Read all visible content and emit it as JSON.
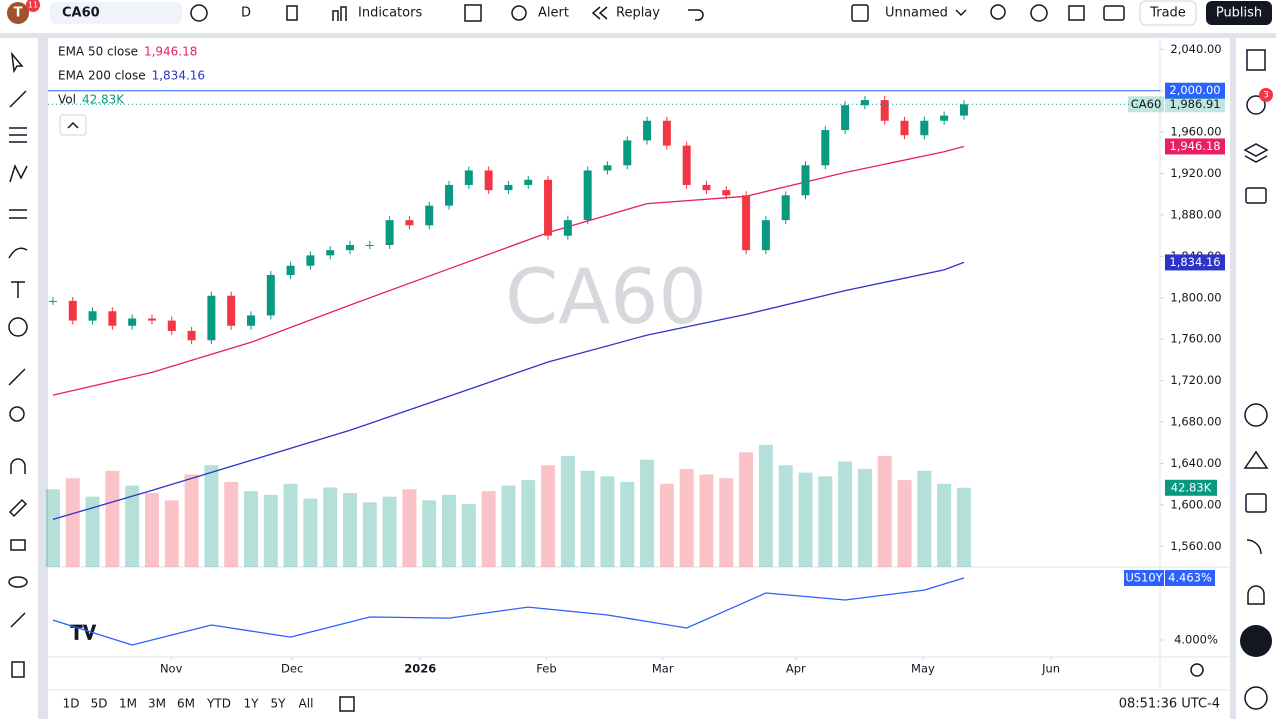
{
  "toolbar": {
    "avatar": "T",
    "avatar_badge": "11",
    "symbol": "CA60",
    "interval": "D",
    "indicators": "Indicators",
    "alert": "Alert",
    "replay": "Replay",
    "layout_name": "Unnamed",
    "trade": "Trade",
    "publish": "Publish"
  },
  "side_badge": "3",
  "bottom_bar": {
    "ranges": [
      "1D",
      "5D",
      "1M",
      "3M",
      "6M",
      "YTD",
      "1Y",
      "5Y",
      "All"
    ],
    "clock": "08:51:36 UTC-4"
  },
  "chart_data": {
    "type": "candlestick",
    "watermark": "CA60",
    "symbol_label": "CA60",
    "closes": [
      1797,
      1778,
      1787,
      1773,
      1780,
      1778,
      1768,
      1759,
      1802,
      1773,
      1783,
      1822,
      1831,
      1841,
      1846,
      1851,
      1851,
      1875,
      1870,
      1889,
      1909,
      1923,
      1904,
      1909,
      1914,
      1860,
      1875,
      1923,
      1928,
      1952,
      1971,
      1947,
      1909,
      1904,
      1899,
      1846,
      1875,
      1899,
      1928,
      1962,
      1986,
      1991,
      1971,
      1957,
      1971,
      1976,
      1986.91
    ],
    "last_label": "1,986.91",
    "up_color": "#089981",
    "down_color": "#f23645",
    "xlim": [
      -0.25,
      55.9
    ],
    "xticks": [
      {
        "value": 5.97,
        "label": "Nov"
      },
      {
        "value": 12.08,
        "label": "Dec"
      },
      {
        "value": 18.55,
        "label": "2026"
      },
      {
        "value": 24.92,
        "label": "Feb"
      },
      {
        "value": 30.79,
        "label": "Mar"
      },
      {
        "value": 37.51,
        "label": "Apr"
      },
      {
        "value": 43.93,
        "label": "May"
      },
      {
        "value": 50.4,
        "label": "Jun"
      }
    ],
    "ylim": [
      1540,
      2049
    ],
    "yticks": [
      {
        "value": 2040,
        "label": "2,040.00"
      },
      {
        "value": 2000,
        "label": "2,000.00"
      },
      {
        "value": 1960,
        "label": "1,960.00"
      },
      {
        "value": 1920,
        "label": "1,920.00"
      },
      {
        "value": 1880,
        "label": "1,880.00"
      },
      {
        "value": 1840,
        "label": "1,840.00"
      },
      {
        "value": 1800,
        "label": "1,800.00"
      },
      {
        "value": 1760,
        "label": "1,760.00"
      },
      {
        "value": 1720,
        "label": "1,720.00"
      },
      {
        "value": 1680,
        "label": "1,680.00"
      },
      {
        "value": 1640,
        "label": "1,640.00"
      },
      {
        "value": 1600,
        "label": "1,600.00"
      },
      {
        "value": 1560,
        "label": "1,560.00"
      }
    ],
    "hline": {
      "value": 2000,
      "label": "2,000.00",
      "color": "#2962ff"
    },
    "series": [
      {
        "name": "EMA 50 close",
        "color": "#e91e63",
        "x": [
          0,
          5,
          10,
          15,
          20,
          25,
          30,
          35,
          40,
          45,
          46
        ],
        "values": [
          1706,
          1728,
          1757,
          1793,
          1828,
          1863,
          1891,
          1898,
          1921,
          1941,
          1946.18
        ],
        "last_label": "1,946.18"
      },
      {
        "name": "EMA 200 close",
        "color": "#2e33c9",
        "x": [
          0,
          5,
          10,
          15,
          20,
          25,
          30,
          35,
          40,
          45,
          46
        ],
        "values": [
          1586,
          1614,
          1643,
          1672,
          1705,
          1738,
          1764,
          1784,
          1807,
          1827,
          1834.16
        ],
        "last_label": "1,834.16"
      }
    ],
    "volume": {
      "name": "Vol",
      "values": [
        42,
        48,
        38,
        52,
        44,
        40,
        36,
        50,
        55,
        46,
        41,
        39,
        45,
        37,
        43,
        40,
        35,
        38,
        42,
        36,
        39,
        34,
        41,
        44,
        47,
        55,
        60,
        52,
        49,
        46,
        58,
        45,
        53,
        50,
        48,
        62,
        66,
        55,
        51,
        49,
        57,
        53,
        60,
        47,
        52,
        45,
        42.83
      ],
      "last_label": "42.83K"
    },
    "compare": {
      "name": "US10Y",
      "color": "#2962ff",
      "x": [
        0,
        4,
        8,
        12,
        16,
        20,
        24,
        28,
        32,
        36,
        40,
        44,
        46
      ],
      "values": [
        4.149,
        3.963,
        4.112,
        4.022,
        4.172,
        4.164,
        4.246,
        4.187,
        4.09,
        4.351,
        4.299,
        4.373,
        4.463
      ],
      "last_label": "4.463%",
      "ylim": [
        3.873,
        4.538
      ],
      "yticks": [
        {
          "value": 4,
          "label": "4.000%"
        }
      ]
    }
  }
}
